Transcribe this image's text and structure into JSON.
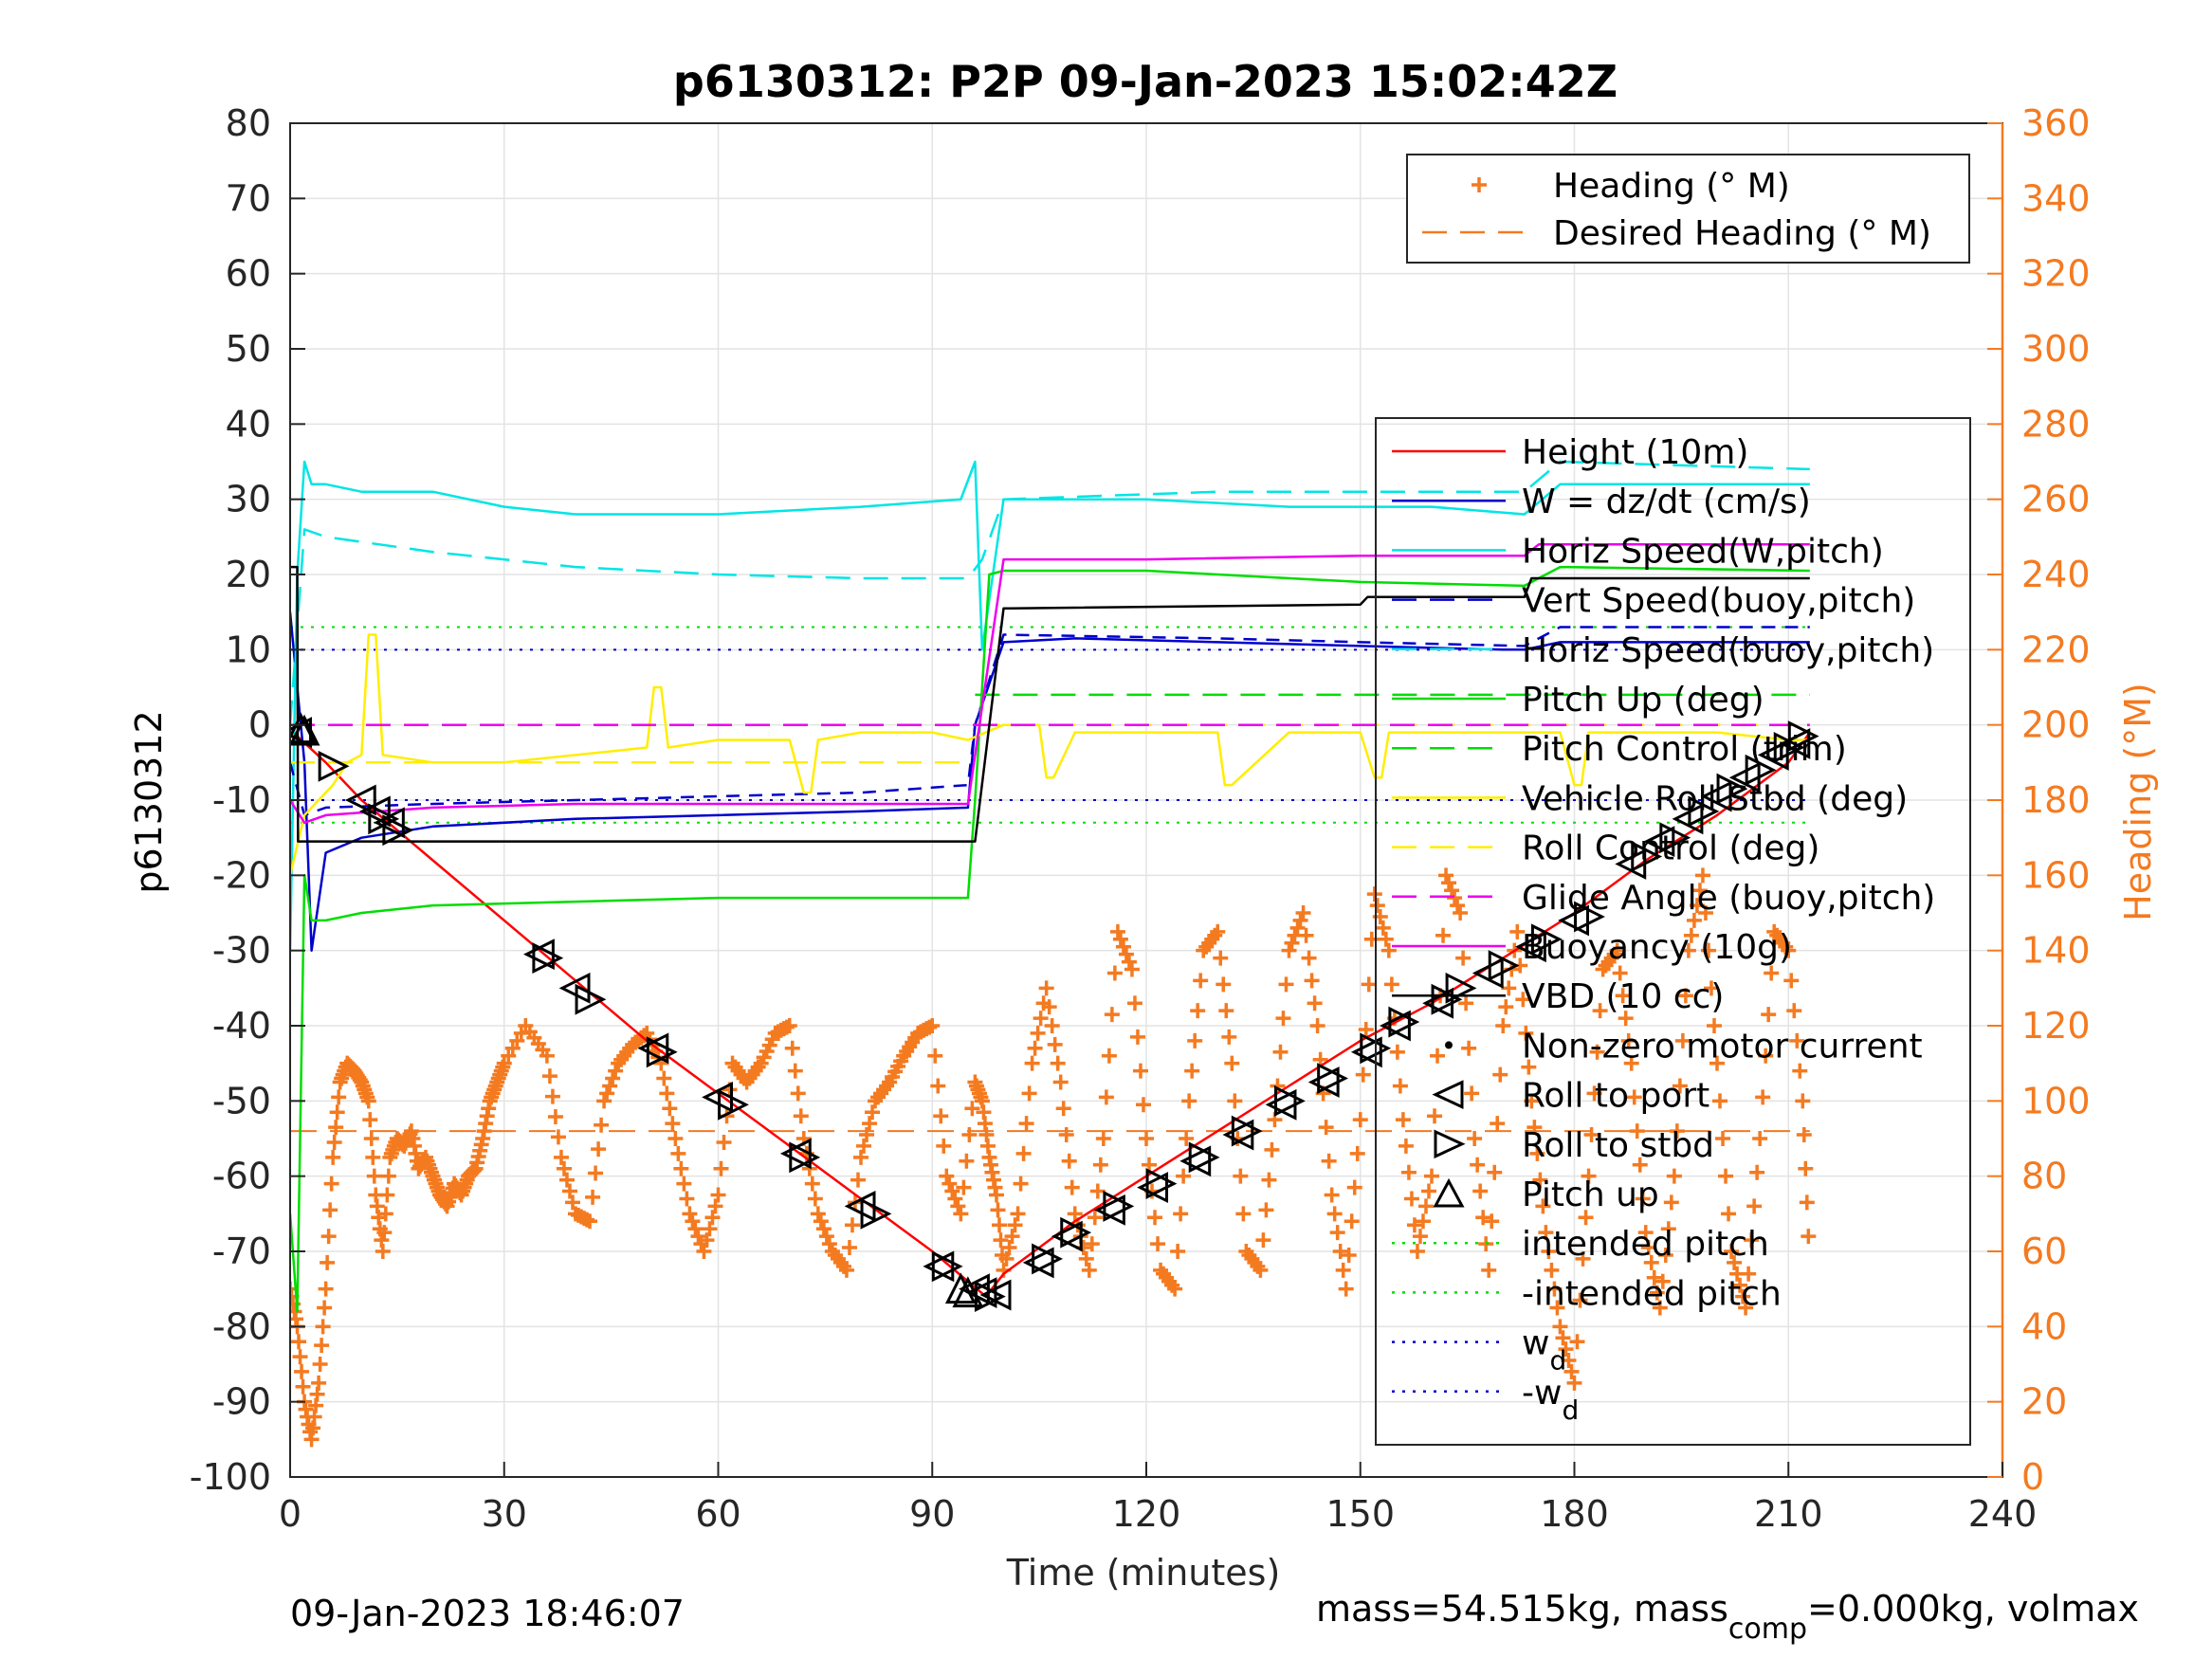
{
  "chart_data": {
    "type": "line",
    "title": "p6130312: P2P 09-Jan-2023 15:02:42Z",
    "xlabel": "Time (minutes)",
    "ylabel_left": "p6130312",
    "ylabel_right": "Heading (°M)",
    "xlim": [
      0,
      240
    ],
    "ylim_left": [
      -100,
      80
    ],
    "ylim_right": [
      0,
      360
    ],
    "x_ticks": [
      "0",
      "30",
      "60",
      "90",
      "120",
      "150",
      "180",
      "210",
      "240"
    ],
    "y_left_ticks": [
      "80",
      "70",
      "60",
      "50",
      "40",
      "30",
      "20",
      "10",
      "0",
      "-10",
      "-20",
      "-30",
      "-40",
      "-50",
      "-60",
      "-70",
      "-80",
      "-90",
      "-100"
    ],
    "y_right_ticks": [
      "360",
      "340",
      "320",
      "300",
      "280",
      "260",
      "240",
      "220",
      "200",
      "180",
      "160",
      "140",
      "120",
      "100",
      "80",
      "60",
      "40",
      "20",
      "0"
    ],
    "grid": true,
    "footer_left": "09-Jan-2023 18:46:07",
    "footer_right": {
      "a": "mass=54.515kg, mass",
      "sub": "comp",
      "b": "=0.000kg, volmax"
    },
    "legend_heading": [
      {
        "name": "Heading (° M)",
        "color": "#f47a20",
        "style": "plus"
      },
      {
        "name": "Desired Heading (° M)",
        "color": "#f47a20",
        "style": "dash"
      }
    ],
    "legend_main": [
      {
        "name": "Height (10m)",
        "color": "#ff0000",
        "style": "solid"
      },
      {
        "name": "W = dz/dt (cm/s)",
        "color": "#0000cc",
        "style": "solid"
      },
      {
        "name": "Horiz Speed(W,pitch)",
        "color": "#00e5e5",
        "style": "solid"
      },
      {
        "name": "Vert Speed(buoy,pitch)",
        "color": "#0000cc",
        "style": "dash"
      },
      {
        "name": "Horiz Speed(buoy,pitch)",
        "color": "#00e5e5",
        "style": "dash"
      },
      {
        "name": "Pitch Up (deg)",
        "color": "#00dd00",
        "style": "solid"
      },
      {
        "name": "Pitch Control (trim)",
        "color": "#00dd00",
        "style": "dash"
      },
      {
        "name": "Vehicle Roll Stbd (deg)",
        "color": "#ffee00",
        "style": "solid"
      },
      {
        "name": "Roll Control (deg)",
        "color": "#ffee00",
        "style": "dash"
      },
      {
        "name": "Glide Angle (buoy,pitch)",
        "color": "#ee00ee",
        "style": "dash"
      },
      {
        "name": "Buoyancy (10g)",
        "color": "#ee00ee",
        "style": "solid"
      },
      {
        "name": "VBD (10 cc)",
        "color": "#000000",
        "style": "solid"
      },
      {
        "name": "Non-zero motor current",
        "color": "#000000",
        "style": "dot"
      },
      {
        "name": "Roll to port",
        "color": "#000000",
        "style": "tri-left"
      },
      {
        "name": "Roll to stbd",
        "color": "#000000",
        "style": "tri-right"
      },
      {
        "name": "Pitch up",
        "color": "#000000",
        "style": "tri-up"
      },
      {
        "name": "intended pitch",
        "color": "#00dd00",
        "style": "dot"
      },
      {
        "name": "-intended pitch",
        "color": "#00dd00",
        "style": "dot"
      },
      {
        "name": "w",
        "sub": "d",
        "color": "#0000cc",
        "style": "dot"
      },
      {
        "name": "-w",
        "sub": "d",
        "color": "#0000cc",
        "style": "dot"
      }
    ],
    "series": [
      {
        "name": "Height (10m)",
        "color": "#ff0000",
        "x": [
          0,
          1,
          5,
          10,
          15,
          20,
          30,
          40,
          50,
          60,
          70,
          80,
          90,
          95,
          97.5,
          100,
          110,
          120,
          130,
          140,
          150,
          160,
          170,
          180,
          190,
          200,
          210,
          213
        ],
        "y": [
          -1,
          -1.5,
          -5,
          -10,
          -14,
          -18,
          -26,
          -34,
          -42,
          -49,
          -56,
          -63,
          -70,
          -74,
          -76,
          -73,
          -66,
          -60,
          -54,
          -48,
          -42,
          -37,
          -31,
          -25,
          -18,
          -12,
          -5,
          -1
        ]
      },
      {
        "name": "W = dz/dt (cm/s)",
        "color": "#0000cc",
        "x": [
          0,
          1,
          2,
          3,
          5,
          10,
          20,
          40,
          60,
          80,
          95,
          96,
          100,
          110,
          130,
          150,
          170,
          173,
          178,
          213
        ],
        "y": [
          15,
          5,
          -5,
          -30,
          -17,
          -15,
          -13.5,
          -12.5,
          -12,
          -11.5,
          -11,
          0,
          11,
          11.5,
          11,
          10.5,
          10,
          10,
          11,
          11
        ]
      },
      {
        "name": "Horiz Speed(W,pitch)",
        "color": "#00e5e5",
        "x": [
          0,
          1,
          2,
          3,
          5,
          10,
          20,
          30,
          40,
          60,
          80,
          94,
          96,
          97,
          100,
          120,
          140,
          160,
          173,
          178,
          213
        ],
        "y": [
          -30,
          20,
          35,
          32,
          32,
          31,
          31,
          29,
          28,
          28,
          29,
          30,
          35,
          10,
          30,
          30,
          29,
          29,
          28,
          32,
          32
        ]
      },
      {
        "name": "Vert Speed(buoy,pitch)",
        "color": "#0000cc",
        "dash": "14 10",
        "x": [
          0,
          2,
          5,
          20,
          40,
          60,
          80,
          95,
          96,
          100,
          130,
          150,
          173,
          178,
          213
        ],
        "y": [
          -5,
          -12,
          -11,
          -10.5,
          -10,
          -9.5,
          -9,
          -8,
          0,
          12,
          11.5,
          11,
          10.5,
          13,
          13
        ]
      },
      {
        "name": "Horiz Speed(buoy,pitch)",
        "color": "#00e5e5",
        "dash": "26 14",
        "x": [
          0,
          2,
          5,
          20,
          40,
          60,
          80,
          95,
          97,
          100,
          130,
          150,
          173,
          178,
          213
        ],
        "y": [
          0,
          26,
          25,
          23,
          21,
          20,
          19.5,
          19.5,
          22,
          30,
          31,
          31,
          31,
          35,
          34
        ]
      },
      {
        "name": "Pitch Up (deg)",
        "color": "#00dd00",
        "x": [
          0,
          1,
          2,
          3,
          5,
          10,
          20,
          40,
          60,
          80,
          95,
          96,
          98,
          100,
          120,
          150,
          173,
          178,
          213
        ],
        "y": [
          -65,
          -78,
          -20,
          -26,
          -26,
          -25,
          -24,
          -23.5,
          -23,
          -23,
          -23,
          -10,
          20,
          20.5,
          20.5,
          19,
          18.5,
          21,
          20.5
        ]
      },
      {
        "name": "Pitch Control (trim)",
        "color": "#00dd00",
        "dash": "26 14",
        "segments": [
          {
            "x": [
              0,
              95
            ],
            "y": [
              -5,
              -5
            ]
          },
          {
            "x": [
              96,
              213
            ],
            "y": [
              4,
              4
            ]
          }
        ]
      },
      {
        "name": "Vehicle Roll Stbd (deg)",
        "color": "#ffee00",
        "x": [
          0,
          2,
          4,
          6,
          8,
          10,
          11,
          12,
          13,
          20,
          30,
          40,
          50,
          51,
          52,
          53,
          60,
          70,
          72,
          73,
          74,
          80,
          90,
          95,
          100,
          105,
          106,
          107,
          110,
          120,
          130,
          131,
          132,
          140,
          150,
          152,
          153,
          154,
          160,
          170,
          178,
          180,
          181,
          182,
          190,
          200,
          210,
          213
        ],
        "y": [
          -20,
          -12,
          -10,
          -8,
          -5,
          -4,
          12,
          12,
          -4,
          -5,
          -5,
          -4,
          -3,
          5,
          5,
          -3,
          -2,
          -2,
          -9,
          -9,
          -2,
          -1,
          -1,
          -2,
          0,
          0,
          -7,
          -7,
          -1,
          -1,
          -1,
          -8,
          -8,
          -1,
          -1,
          -7,
          -7,
          -1,
          -1,
          -1,
          -1,
          -8,
          -8,
          -1,
          -1,
          -1,
          -2,
          -2
        ]
      },
      {
        "name": "Roll Control (deg)",
        "color": "#ffee00",
        "dash": "26 14",
        "segments": [
          {
            "x": [
              0,
              95
            ],
            "y": [
              -5,
              -5
            ]
          },
          {
            "x": [
              96,
              213
            ],
            "y": [
              0,
              0
            ]
          }
        ]
      },
      {
        "name": "Glide Angle (buoy,pitch)",
        "color": "#ee00ee",
        "dash": "26 14",
        "x": [
          0,
          213
        ],
        "y": [
          0,
          0
        ]
      },
      {
        "name": "Buoyancy (10g)",
        "color": "#ee00ee",
        "x": [
          0,
          2,
          5,
          20,
          40,
          60,
          80,
          95,
          100,
          120,
          150,
          173,
          175,
          178,
          213
        ],
        "y": [
          -10,
          -13,
          -12,
          -11,
          -10.5,
          -10.5,
          -10.5,
          -10.5,
          22,
          22,
          22.5,
          22.5,
          24,
          24,
          24
        ]
      },
      {
        "name": "VBD (10 cc)",
        "color": "#000000",
        "x": [
          0,
          1,
          1.1,
          95,
          96,
          100,
          101,
          150,
          151,
          173,
          174,
          213
        ],
        "y": [
          21,
          21,
          -15.5,
          -15.5,
          -15.5,
          15.5,
          15.5,
          16,
          17,
          17,
          19.5,
          19.5
        ]
      }
    ],
    "reference_lines": [
      {
        "name": "intended pitch",
        "color": "#00dd00",
        "y": 13
      },
      {
        "name": "-intended pitch",
        "color": "#00dd00",
        "y": -13
      },
      {
        "name": "w_d",
        "color": "#0000cc",
        "y": 10
      },
      {
        "name": "-w_d",
        "color": "#0000cc",
        "y": -10
      }
    ],
    "desired_heading_deg": 92,
    "heading_deg": {
      "x": [
        0,
        1,
        2,
        3,
        4,
        5,
        6,
        7,
        8,
        9,
        10,
        11,
        12,
        13,
        14,
        15,
        16,
        17,
        18,
        19,
        20,
        21,
        22,
        23,
        24,
        25,
        26,
        27,
        28,
        29,
        30,
        33,
        36,
        38,
        40,
        42,
        44,
        46,
        48,
        50,
        52,
        54,
        56,
        58,
        60,
        62,
        64,
        66,
        68,
        70,
        72,
        74,
        76,
        78,
        80,
        82,
        84,
        86,
        88,
        90,
        92,
        94,
        96,
        97,
        98,
        99,
        100,
        102,
        104,
        106,
        108,
        110,
        112,
        114,
        116,
        118,
        120,
        122,
        124,
        126,
        128,
        130,
        132,
        134,
        136,
        138,
        140,
        142,
        144,
        146,
        148,
        150,
        152,
        154,
        156,
        158,
        160,
        162,
        164,
        166,
        168,
        170,
        172,
        174,
        176,
        178,
        180,
        182,
        184,
        186,
        188,
        190,
        192,
        194,
        196,
        198,
        200,
        202,
        204,
        206,
        208,
        210,
        212,
        213
      ],
      "y": [
        50,
        40,
        20,
        10,
        25,
        50,
        85,
        105,
        110,
        108,
        105,
        100,
        75,
        60,
        85,
        90,
        88,
        92,
        82,
        85,
        80,
        75,
        72,
        78,
        75,
        80,
        82,
        90,
        100,
        105,
        110,
        120,
        112,
        85,
        70,
        68,
        100,
        110,
        115,
        118,
        110,
        90,
        70,
        60,
        75,
        110,
        105,
        110,
        118,
        120,
        90,
        70,
        60,
        55,
        85,
        100,
        105,
        112,
        118,
        120,
        80,
        70,
        105,
        100,
        85,
        75,
        55,
        70,
        110,
        130,
        105,
        70,
        55,
        90,
        145,
        135,
        90,
        55,
        50,
        100,
        140,
        145,
        110,
        60,
        55,
        95,
        140,
        150,
        120,
        75,
        50,
        95,
        155,
        140,
        95,
        60,
        80,
        160,
        150,
        90,
        55,
        120,
        145,
        100,
        65,
        40,
        25,
        80,
        135,
        140,
        110,
        65,
        45,
        80,
        140,
        160,
        110,
        60,
        45,
        90,
        145,
        140,
        100,
        55
      ]
    },
    "markers": {
      "roll_to_stbd": [
        [
          6,
          -5.5
        ],
        [
          13,
          -12.5
        ],
        [
          15,
          -14
        ],
        [
          36,
          -31
        ],
        [
          42,
          -36.5
        ],
        [
          52,
          -43.5
        ],
        [
          62,
          -50.5
        ],
        [
          72,
          -57.5
        ],
        [
          82,
          -65
        ],
        [
          92,
          -72
        ],
        [
          98,
          -76
        ],
        [
          106,
          -71
        ],
        [
          110,
          -67.5
        ],
        [
          116,
          -64
        ],
        [
          122,
          -61
        ],
        [
          128,
          -57.5
        ],
        [
          134,
          -54
        ],
        [
          140,
          -50
        ],
        [
          146,
          -47
        ],
        [
          152,
          -43
        ],
        [
          156,
          -39.5
        ],
        [
          162,
          -36.5
        ],
        [
          164,
          -35
        ],
        [
          170,
          -32
        ],
        [
          176,
          -28.5
        ],
        [
          182,
          -25.5
        ],
        [
          190,
          -17.5
        ],
        [
          194,
          -15
        ],
        [
          198,
          -11.5
        ],
        [
          202,
          -8.5
        ],
        [
          206,
          -6
        ],
        [
          210,
          -3
        ],
        [
          212,
          -1.5
        ]
      ],
      "roll_to_port": [
        [
          1,
          -1
        ],
        [
          10,
          -10
        ],
        [
          12,
          -11.5
        ],
        [
          14,
          -13
        ],
        [
          35,
          -30.5
        ],
        [
          40,
          -35
        ],
        [
          51,
          -43
        ],
        [
          60,
          -49.5
        ],
        [
          71,
          -57
        ],
        [
          80,
          -64
        ],
        [
          91,
          -72
        ],
        [
          96,
          -75
        ],
        [
          97,
          -75.5
        ],
        [
          99,
          -75.8
        ],
        [
          105,
          -71.5
        ],
        [
          109,
          -68
        ],
        [
          115,
          -64.5
        ],
        [
          121,
          -61.5
        ],
        [
          127,
          -58
        ],
        [
          133,
          -54.5
        ],
        [
          139,
          -50.5
        ],
        [
          145,
          -47.5
        ],
        [
          151,
          -43.5
        ],
        [
          155,
          -40
        ],
        [
          161,
          -37
        ],
        [
          168,
          -33
        ],
        [
          174,
          -29.5
        ],
        [
          180,
          -26
        ],
        [
          188,
          -18.5
        ],
        [
          192,
          -15.5
        ],
        [
          196,
          -12.5
        ],
        [
          200,
          -9.5
        ],
        [
          204,
          -7
        ],
        [
          208,
          -4
        ],
        [
          211,
          -2.5
        ]
      ],
      "pitch_up": [
        [
          1.5,
          -0.5
        ],
        [
          2,
          -0.8
        ],
        [
          94,
          -75
        ],
        [
          95,
          -75.5
        ]
      ]
    }
  }
}
